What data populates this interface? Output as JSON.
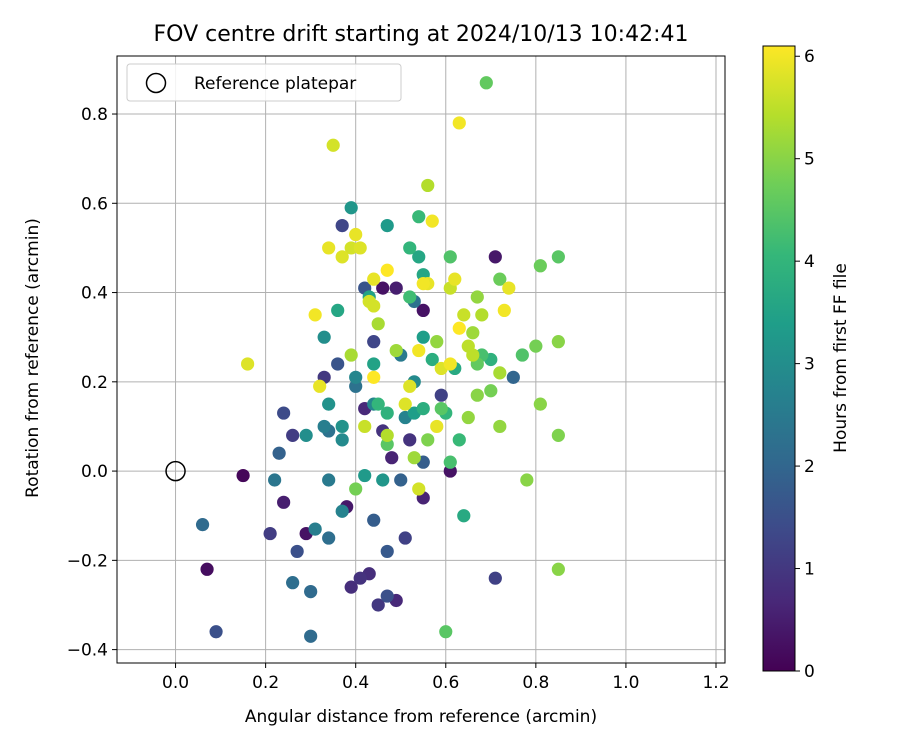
{
  "chart_data": {
    "type": "scatter",
    "title": "FOV centre drift starting at 2024/10/13 10:42:41",
    "xlabel": "Angular distance from reference (arcmin)",
    "ylabel": "Rotation from reference (arcmin)",
    "xlim": [
      -0.13,
      1.22
    ],
    "ylim": [
      -0.43,
      0.93
    ],
    "xticks": [
      0.0,
      0.2,
      0.4,
      0.6,
      0.8,
      1.0,
      1.2
    ],
    "xtick_labels": [
      "0.0",
      "0.2",
      "0.4",
      "0.6",
      "0.8",
      "1.0",
      "1.2"
    ],
    "yticks": [
      -0.4,
      -0.2,
      0.0,
      0.2,
      0.4,
      0.6,
      0.8
    ],
    "ytick_labels": [
      "−0.4",
      "−0.2",
      "0.0",
      "0.2",
      "0.4",
      "0.6",
      "0.8"
    ],
    "grid": true,
    "legend": {
      "location": "upper-left",
      "entries": [
        "Reference platepar"
      ]
    },
    "reference_point": {
      "x": 0.0,
      "y": 0.0,
      "label": "Reference platepar",
      "marker": "open-circle"
    },
    "colorbar": {
      "label": "Hours from first FF file",
      "colormap": "viridis",
      "min": 0,
      "max": 6.1,
      "ticks": [
        0,
        1,
        2,
        3,
        4,
        5,
        6
      ],
      "tick_labels": [
        "0",
        "1",
        "2",
        "3",
        "4",
        "5",
        "6"
      ],
      "colors": [
        "#440154",
        "#482878",
        "#3e4989",
        "#31688e",
        "#26828e",
        "#1f9e89",
        "#35b779",
        "#6ece58",
        "#b5de2b",
        "#fde725"
      ]
    },
    "points": [
      {
        "x": 0.15,
        "y": -0.01,
        "t": 0.1
      },
      {
        "x": 0.07,
        "y": -0.22,
        "t": 0.2
      },
      {
        "x": 0.29,
        "y": -0.14,
        "t": 0.3
      },
      {
        "x": 0.46,
        "y": 0.41,
        "t": 0.3
      },
      {
        "x": 0.55,
        "y": 0.36,
        "t": 0.3
      },
      {
        "x": 0.61,
        "y": 0.0,
        "t": 0.3
      },
      {
        "x": 0.71,
        "y": 0.48,
        "t": 0.4
      },
      {
        "x": 0.38,
        "y": -0.08,
        "t": 0.4
      },
      {
        "x": 0.49,
        "y": 0.41,
        "t": 0.5
      },
      {
        "x": 0.24,
        "y": -0.07,
        "t": 0.5
      },
      {
        "x": 0.48,
        "y": 0.03,
        "t": 0.6
      },
      {
        "x": 0.55,
        "y": -0.06,
        "t": 0.6
      },
      {
        "x": 0.49,
        "y": -0.29,
        "t": 0.7
      },
      {
        "x": 0.42,
        "y": 0.14,
        "t": 0.7
      },
      {
        "x": 0.43,
        "y": -0.23,
        "t": 0.8
      },
      {
        "x": 0.39,
        "y": -0.26,
        "t": 0.8
      },
      {
        "x": 0.41,
        "y": -0.24,
        "t": 0.9
      },
      {
        "x": 0.52,
        "y": 0.07,
        "t": 0.9
      },
      {
        "x": 0.46,
        "y": 0.09,
        "t": 0.9
      },
      {
        "x": 0.33,
        "y": 0.21,
        "t": 1.0
      },
      {
        "x": 0.45,
        "y": -0.3,
        "t": 1.0
      },
      {
        "x": 0.21,
        "y": -0.14,
        "t": 1.1
      },
      {
        "x": 0.26,
        "y": 0.08,
        "t": 1.1
      },
      {
        "x": 0.51,
        "y": -0.15,
        "t": 1.2
      },
      {
        "x": 0.59,
        "y": 0.17,
        "t": 1.2
      },
      {
        "x": 0.71,
        "y": -0.24,
        "t": 1.2
      },
      {
        "x": 0.44,
        "y": 0.29,
        "t": 1.3
      },
      {
        "x": 0.37,
        "y": 0.55,
        "t": 1.3
      },
      {
        "x": 0.24,
        "y": 0.13,
        "t": 1.4
      },
      {
        "x": 0.09,
        "y": -0.36,
        "t": 1.5
      },
      {
        "x": 0.27,
        "y": -0.18,
        "t": 1.5
      },
      {
        "x": 0.47,
        "y": -0.28,
        "t": 1.5
      },
      {
        "x": 0.36,
        "y": 0.24,
        "t": 1.6
      },
      {
        "x": 0.42,
        "y": 0.41,
        "t": 1.6
      },
      {
        "x": 0.47,
        "y": -0.18,
        "t": 1.7
      },
      {
        "x": 0.55,
        "y": 0.02,
        "t": 1.8
      },
      {
        "x": 0.44,
        "y": -0.11,
        "t": 1.8
      },
      {
        "x": 0.23,
        "y": 0.04,
        "t": 1.9
      },
      {
        "x": 0.5,
        "y": -0.02,
        "t": 1.9
      },
      {
        "x": 0.75,
        "y": 0.21,
        "t": 2.0
      },
      {
        "x": 0.06,
        "y": -0.12,
        "t": 2.1
      },
      {
        "x": 0.3,
        "y": -0.37,
        "t": 2.1
      },
      {
        "x": 0.3,
        "y": -0.27,
        "t": 2.1
      },
      {
        "x": 0.26,
        "y": -0.25,
        "t": 2.2
      },
      {
        "x": 0.34,
        "y": -0.15,
        "t": 2.2
      },
      {
        "x": 0.34,
        "y": 0.09,
        "t": 2.3
      },
      {
        "x": 0.4,
        "y": 0.19,
        "t": 2.3
      },
      {
        "x": 0.53,
        "y": 0.38,
        "t": 2.3
      },
      {
        "x": 0.22,
        "y": -0.02,
        "t": 2.4
      },
      {
        "x": 0.34,
        "y": -0.02,
        "t": 2.5
      },
      {
        "x": 0.5,
        "y": 0.26,
        "t": 2.5
      },
      {
        "x": 0.31,
        "y": -0.13,
        "t": 2.6
      },
      {
        "x": 0.33,
        "y": 0.1,
        "t": 2.6
      },
      {
        "x": 0.37,
        "y": -0.09,
        "t": 2.7
      },
      {
        "x": 0.51,
        "y": 0.12,
        "t": 2.7
      },
      {
        "x": 0.4,
        "y": 0.21,
        "t": 2.8
      },
      {
        "x": 0.44,
        "y": 0.15,
        "t": 2.8
      },
      {
        "x": 0.37,
        "y": 0.07,
        "t": 2.9
      },
      {
        "x": 0.53,
        "y": 0.2,
        "t": 2.9
      },
      {
        "x": 0.29,
        "y": 0.08,
        "t": 3.0
      },
      {
        "x": 0.33,
        "y": 0.3,
        "t": 3.0
      },
      {
        "x": 0.34,
        "y": 0.15,
        "t": 3.1
      },
      {
        "x": 0.37,
        "y": 0.1,
        "t": 3.1
      },
      {
        "x": 0.39,
        "y": 0.59,
        "t": 3.2
      },
      {
        "x": 0.46,
        "y": -0.02,
        "t": 3.2
      },
      {
        "x": 0.42,
        "y": -0.01,
        "t": 3.3
      },
      {
        "x": 0.47,
        "y": 0.55,
        "t": 3.3
      },
      {
        "x": 0.53,
        "y": 0.13,
        "t": 3.4
      },
      {
        "x": 0.55,
        "y": 0.3,
        "t": 3.4
      },
      {
        "x": 0.44,
        "y": 0.24,
        "t": 3.5
      },
      {
        "x": 0.43,
        "y": 0.39,
        "t": 3.5
      },
      {
        "x": 0.54,
        "y": 0.48,
        "t": 3.6
      },
      {
        "x": 0.36,
        "y": 0.36,
        "t": 3.6
      },
      {
        "x": 0.55,
        "y": 0.44,
        "t": 3.6
      },
      {
        "x": 0.64,
        "y": -0.1,
        "t": 3.7
      },
      {
        "x": 0.62,
        "y": 0.23,
        "t": 3.7
      },
      {
        "x": 0.57,
        "y": 0.25,
        "t": 3.8
      },
      {
        "x": 0.55,
        "y": 0.14,
        "t": 3.8
      },
      {
        "x": 0.47,
        "y": 0.13,
        "t": 3.9
      },
      {
        "x": 0.7,
        "y": 0.25,
        "t": 3.9
      },
      {
        "x": 0.45,
        "y": 0.15,
        "t": 4.0
      },
      {
        "x": 0.6,
        "y": 0.13,
        "t": 4.0
      },
      {
        "x": 0.52,
        "y": 0.5,
        "t": 4.0
      },
      {
        "x": 0.54,
        "y": 0.57,
        "t": 4.1
      },
      {
        "x": 0.63,
        "y": 0.07,
        "t": 4.1
      },
      {
        "x": 0.52,
        "y": 0.39,
        "t": 4.2
      },
      {
        "x": 0.61,
        "y": 0.02,
        "t": 4.3
      },
      {
        "x": 0.68,
        "y": 0.26,
        "t": 4.3
      },
      {
        "x": 0.77,
        "y": 0.26,
        "t": 4.4
      },
      {
        "x": 0.61,
        "y": 0.48,
        "t": 4.4
      },
      {
        "x": 0.6,
        "y": -0.36,
        "t": 4.5
      },
      {
        "x": 0.85,
        "y": 0.48,
        "t": 4.5
      },
      {
        "x": 0.47,
        "y": 0.06,
        "t": 4.5
      },
      {
        "x": 0.59,
        "y": 0.14,
        "t": 4.5
      },
      {
        "x": 0.69,
        "y": 0.87,
        "t": 4.6
      },
      {
        "x": 0.67,
        "y": 0.24,
        "t": 4.6
      },
      {
        "x": 0.72,
        "y": 0.43,
        "t": 4.7
      },
      {
        "x": 0.81,
        "y": 0.46,
        "t": 4.7
      },
      {
        "x": 0.7,
        "y": 0.18,
        "t": 4.8
      },
      {
        "x": 0.8,
        "y": 0.28,
        "t": 4.8
      },
      {
        "x": 0.4,
        "y": -0.04,
        "t": 4.8
      },
      {
        "x": 0.56,
        "y": 0.07,
        "t": 4.9
      },
      {
        "x": 0.85,
        "y": 0.08,
        "t": 4.9
      },
      {
        "x": 0.85,
        "y": 0.29,
        "t": 5.0
      },
      {
        "x": 0.85,
        "y": -0.22,
        "t": 5.0
      },
      {
        "x": 0.67,
        "y": 0.17,
        "t": 5.0
      },
      {
        "x": 0.81,
        "y": 0.15,
        "t": 5.0
      },
      {
        "x": 0.78,
        "y": -0.02,
        "t": 5.0
      },
      {
        "x": 0.72,
        "y": 0.1,
        "t": 5.1
      },
      {
        "x": 0.67,
        "y": 0.39,
        "t": 5.1
      },
      {
        "x": 0.65,
        "y": 0.12,
        "t": 5.1
      },
      {
        "x": 0.58,
        "y": 0.29,
        "t": 5.1
      },
      {
        "x": 0.53,
        "y": 0.03,
        "t": 5.2
      },
      {
        "x": 0.66,
        "y": 0.31,
        "t": 5.2
      },
      {
        "x": 0.49,
        "y": 0.27,
        "t": 5.2
      },
      {
        "x": 0.45,
        "y": 0.33,
        "t": 5.3
      },
      {
        "x": 0.72,
        "y": 0.22,
        "t": 5.3
      },
      {
        "x": 0.39,
        "y": 0.26,
        "t": 5.3
      },
      {
        "x": 0.68,
        "y": 0.35,
        "t": 5.4
      },
      {
        "x": 0.56,
        "y": 0.64,
        "t": 5.4
      },
      {
        "x": 0.47,
        "y": 0.08,
        "t": 5.4
      },
      {
        "x": 0.66,
        "y": 0.26,
        "t": 5.5
      },
      {
        "x": 0.65,
        "y": 0.28,
        "t": 5.5
      },
      {
        "x": 0.61,
        "y": 0.41,
        "t": 5.6
      },
      {
        "x": 0.42,
        "y": 0.1,
        "t": 5.6
      },
      {
        "x": 0.64,
        "y": 0.35,
        "t": 5.6
      },
      {
        "x": 0.35,
        "y": 0.73,
        "t": 5.7
      },
      {
        "x": 0.39,
        "y": 0.5,
        "t": 5.7
      },
      {
        "x": 0.43,
        "y": 0.38,
        "t": 5.7
      },
      {
        "x": 0.44,
        "y": 0.37,
        "t": 5.7
      },
      {
        "x": 0.54,
        "y": -0.04,
        "t": 5.7
      },
      {
        "x": 0.16,
        "y": 0.24,
        "t": 5.8
      },
      {
        "x": 0.52,
        "y": 0.19,
        "t": 5.8
      },
      {
        "x": 0.37,
        "y": 0.48,
        "t": 5.8
      },
      {
        "x": 0.51,
        "y": 0.15,
        "t": 5.8
      },
      {
        "x": 0.41,
        "y": 0.5,
        "t": 5.8
      },
      {
        "x": 0.59,
        "y": 0.23,
        "t": 5.8
      },
      {
        "x": 0.4,
        "y": 0.53,
        "t": 5.9
      },
      {
        "x": 0.32,
        "y": 0.19,
        "t": 5.9
      },
      {
        "x": 0.34,
        "y": 0.5,
        "t": 5.9
      },
      {
        "x": 0.44,
        "y": 0.43,
        "t": 5.9
      },
      {
        "x": 0.62,
        "y": 0.43,
        "t": 5.9
      },
      {
        "x": 0.56,
        "y": 0.42,
        "t": 5.9
      },
      {
        "x": 0.74,
        "y": 0.41,
        "t": 5.9
      },
      {
        "x": 0.58,
        "y": 0.1,
        "t": 5.9
      },
      {
        "x": 0.61,
        "y": 0.24,
        "t": 6.0
      },
      {
        "x": 0.63,
        "y": 0.78,
        "t": 6.0
      },
      {
        "x": 0.57,
        "y": 0.56,
        "t": 6.0
      },
      {
        "x": 0.31,
        "y": 0.35,
        "t": 6.0
      },
      {
        "x": 0.73,
        "y": 0.36,
        "t": 6.0
      },
      {
        "x": 0.54,
        "y": 0.27,
        "t": 6.0
      },
      {
        "x": 0.55,
        "y": 0.42,
        "t": 6.0
      },
      {
        "x": 0.47,
        "y": 0.45,
        "t": 6.1
      },
      {
        "x": 0.63,
        "y": 0.32,
        "t": 6.1
      },
      {
        "x": 0.44,
        "y": 0.21,
        "t": 6.1
      }
    ]
  }
}
